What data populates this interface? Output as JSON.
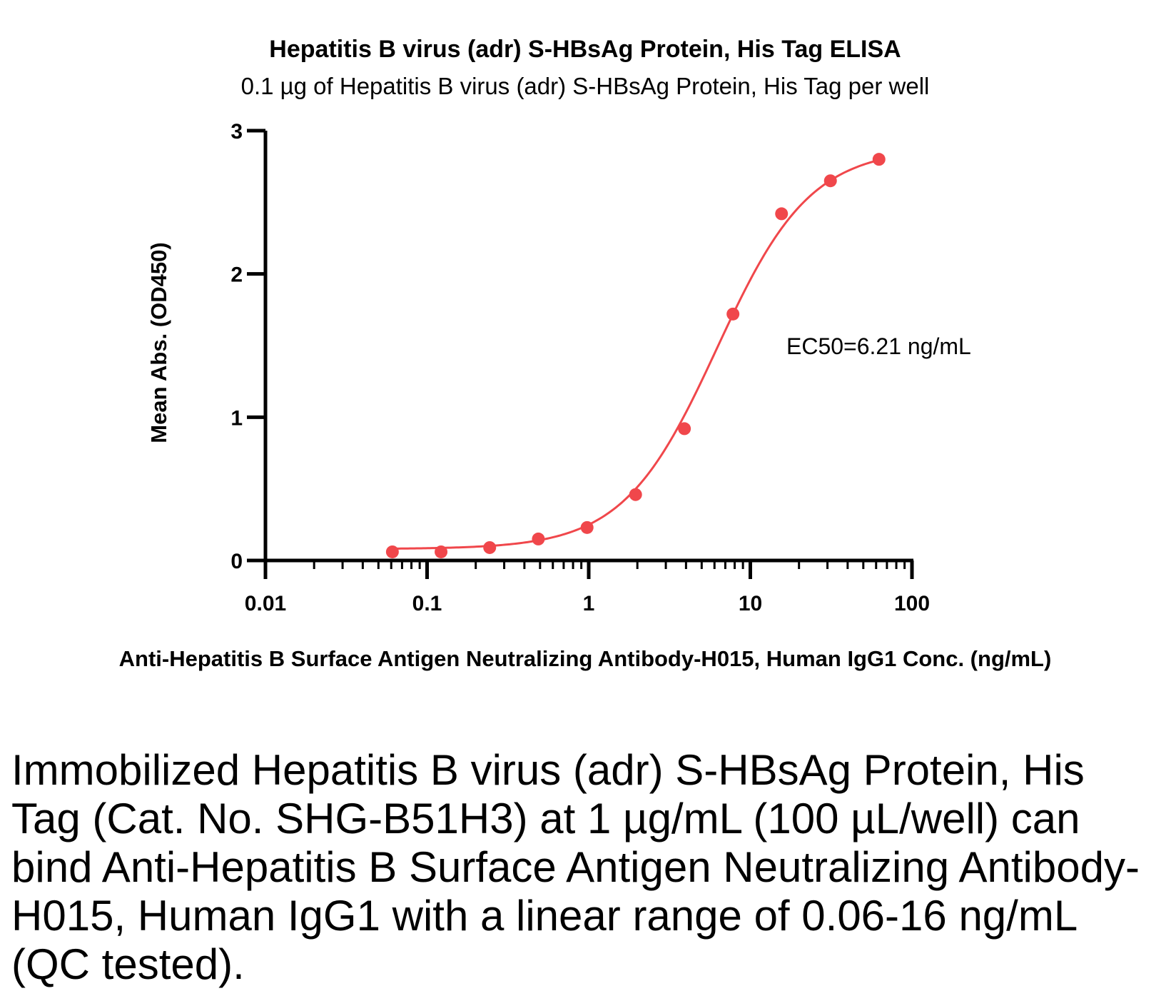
{
  "chart_data": {
    "type": "scatter",
    "title": "Hepatitis B virus (adr) S-HBsAg Protein, His Tag ELISA",
    "subtitle": "0.1 µg of Hepatitis B virus (adr) S-HBsAg Protein, His Tag per well",
    "xlabel": "Anti-Hepatitis B Surface Antigen Neutralizing Antibody-H015, Human IgG1 Conc. (ng/mL)",
    "ylabel": "Mean Abs. (OD450)",
    "xscale": "log",
    "xlim": [
      0.01,
      100
    ],
    "ylim": [
      0,
      3
    ],
    "x_ticks": [
      0.01,
      0.1,
      1,
      10,
      100
    ],
    "x_tick_labels": [
      "0.01",
      "0.1",
      "1",
      "10",
      "100"
    ],
    "y_ticks": [
      0,
      1,
      2,
      3
    ],
    "y_tick_labels": [
      "0",
      "1",
      "2",
      "3"
    ],
    "grid": false,
    "series": [
      {
        "color": "#f0474b",
        "x": [
          0.061,
          0.122,
          0.244,
          0.488,
          0.977,
          1.95,
          3.91,
          7.81,
          15.6,
          31.3,
          62.5
        ],
        "y": [
          0.06,
          0.06,
          0.09,
          0.15,
          0.23,
          0.46,
          0.92,
          1.72,
          2.42,
          2.65,
          2.8
        ]
      }
    ],
    "fit_curve": {
      "type": "4PL",
      "bottom": 0.08,
      "top": 2.88,
      "ec50": 6.21,
      "hill": 1.5,
      "color": "#f0474b"
    },
    "annotations": [
      "EC50=6.21 ng/mL"
    ]
  },
  "caption": "Immobilized Hepatitis B virus (adr) S-HBsAg Protein, His Tag (Cat. No. SHG-B51H3) at 1 µg/mL (100 µL/well) can bind Anti-Hepatitis B Surface Antigen Neutralizing Antibody-H015, Human IgG1 with a linear range of 0.06-16 ng/mL (QC tested)."
}
